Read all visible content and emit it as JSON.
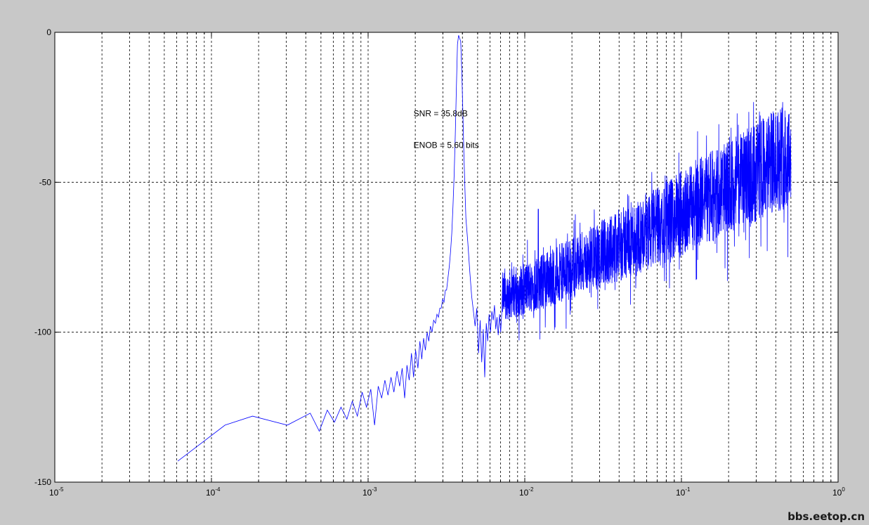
{
  "chart_data": {
    "type": "line",
    "xscale": "log",
    "xlim": [
      1e-05,
      1
    ],
    "ylim": [
      -150,
      0
    ],
    "grid": true,
    "xticks": [
      {
        "value": 1e-05,
        "base": "10",
        "exp": "-5"
      },
      {
        "value": 0.0001,
        "base": "10",
        "exp": "-4"
      },
      {
        "value": 0.001,
        "base": "10",
        "exp": "-3"
      },
      {
        "value": 0.01,
        "base": "10",
        "exp": "-2"
      },
      {
        "value": 0.1,
        "base": "10",
        "exp": "-1"
      },
      {
        "value": 1,
        "base": "10",
        "exp": "0"
      }
    ],
    "yticks": [
      {
        "value": 0,
        "label": "0"
      },
      {
        "value": -50,
        "label": "-50"
      },
      {
        "value": -100,
        "label": "-100"
      },
      {
        "value": -150,
        "label": "-150"
      }
    ],
    "series": [
      {
        "color": "#0000ff",
        "x": [
          6.1e-05,
          0.000122,
          0.000183,
          0.000305,
          0.000427,
          0.000488,
          0.000549,
          0.00061,
          0.000671,
          0.000732,
          0.000793,
          0.000854,
          0.000916,
          0.000977,
          0.00104,
          0.0011,
          0.00116,
          0.00122,
          0.00128,
          0.00134,
          0.0014,
          0.00146,
          0.00153,
          0.00159,
          0.00165,
          0.00171,
          0.00177,
          0.00183,
          0.00189,
          0.00195,
          0.00201,
          0.00208,
          0.00214,
          0.0022,
          0.00226,
          0.00232,
          0.00238,
          0.00244,
          0.0025,
          0.00256,
          0.00262,
          0.00269,
          0.00275,
          0.00281,
          0.00287,
          0.00293,
          0.00299,
          0.00305,
          0.00311,
          0.00317,
          0.00323,
          0.0033,
          0.00336,
          0.00342,
          0.00348,
          0.00354,
          0.0036,
          0.00366,
          0.00372,
          0.00378,
          0.0039,
          0.00397,
          0.00403,
          0.00409,
          0.00415,
          0.00421,
          0.00433,
          0.00446,
          0.00458,
          0.0047,
          0.00482,
          0.00494,
          0.00507,
          0.00519,
          0.00531,
          0.00543,
          0.00555,
          0.00568,
          0.0058,
          0.00592,
          0.00604,
          0.00616,
          0.00629,
          0.00641,
          0.00653,
          0.00665,
          0.00677,
          0.0069,
          0.00702,
          0.00714
        ],
        "y": [
          -143,
          -131,
          -128,
          -131,
          -127,
          -133,
          -126,
          -130,
          -125,
          -129,
          -123,
          -128,
          -120,
          -125,
          -119,
          -131,
          -118,
          -122,
          -116,
          -121,
          -115,
          -120,
          -113,
          -118,
          -112,
          -122,
          -111,
          -116,
          -107,
          -115,
          -106,
          -112,
          -103,
          -109,
          -102,
          -106,
          -100,
          -103,
          -98,
          -100,
          -96,
          -97,
          -94,
          -95,
          -92,
          -92,
          -89,
          -90,
          -86,
          -86,
          -82,
          -78,
          -73,
          -67,
          -58,
          -48,
          -34,
          -18,
          -4,
          -1,
          -3,
          -14,
          -28,
          -41,
          -52,
          -62,
          -70,
          -80,
          -88,
          -93,
          -98,
          -92,
          -107,
          -96,
          -110,
          -99,
          -115,
          -97,
          -103,
          -94,
          -100,
          -93,
          -96,
          -91,
          -99,
          -95,
          -101,
          -94,
          -100,
          -93
        ]
      }
    ],
    "noise": {
      "comment_free": true,
      "mean_start": -88,
      "mean_end": -40,
      "spread_start": 8,
      "spread_end": 18,
      "x_start": 0.0072,
      "x_end": 0.5,
      "spike_x": 0.0122,
      "spike_y": -59
    },
    "annotations": [
      {
        "text": "SNR = 35.8dB",
        "x": 0.00195,
        "y": -28
      },
      {
        "text": "ENOB = 5.60 bits",
        "x": 0.00195,
        "y": -38.5
      }
    ]
  },
  "watermark": "bbs.eetop.cn"
}
